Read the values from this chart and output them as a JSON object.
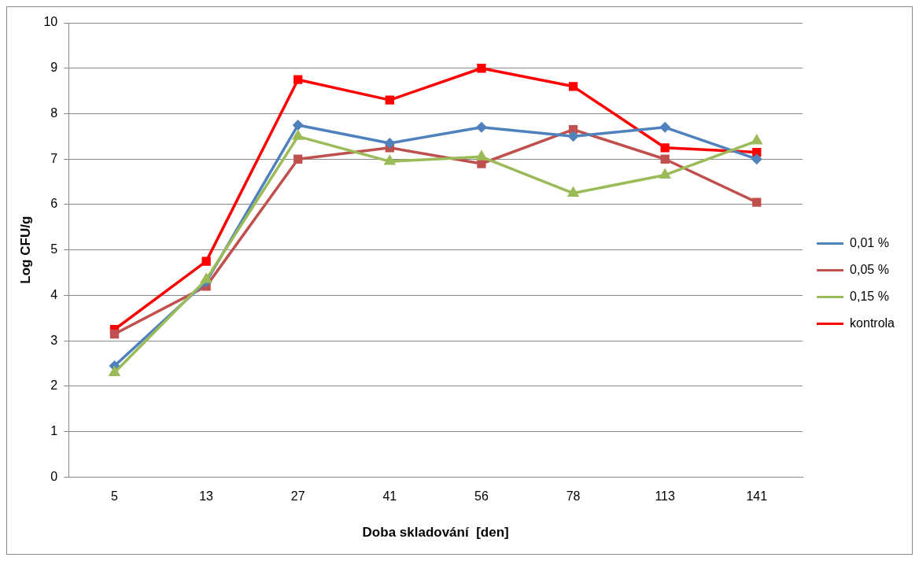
{
  "chart_data": {
    "type": "line",
    "xlabel": "Doba skladování  [den]",
    "ylabel": "Log CFU/g",
    "categories": [
      "5",
      "13",
      "27",
      "41",
      "56",
      "78",
      "113",
      "141"
    ],
    "series": [
      {
        "name": "0,01 %",
        "color": "#4f81bd",
        "marker": "diamond",
        "values": [
          2.45,
          4.3,
          7.75,
          7.35,
          7.7,
          7.5,
          7.7,
          7.0
        ]
      },
      {
        "name": "0,05 %",
        "color": "#c0504d",
        "marker": "square",
        "values": [
          3.15,
          4.2,
          7.0,
          7.25,
          6.9,
          7.65,
          7.0,
          6.05
        ]
      },
      {
        "name": "0,15 %",
        "color": "#9bbb59",
        "marker": "triangle",
        "values": [
          2.3,
          4.35,
          7.5,
          6.95,
          7.05,
          6.25,
          6.65,
          7.4
        ]
      },
      {
        "name": "kontrola",
        "color": "#ff0000",
        "marker": "square",
        "values": [
          3.25,
          4.75,
          8.75,
          8.3,
          9.0,
          8.6,
          7.25,
          7.15
        ]
      }
    ],
    "ylim": [
      0,
      10
    ],
    "yticks": [
      0,
      1,
      2,
      3,
      4,
      5,
      6,
      7,
      8,
      9,
      10
    ],
    "grid": "y",
    "legend": "right"
  }
}
